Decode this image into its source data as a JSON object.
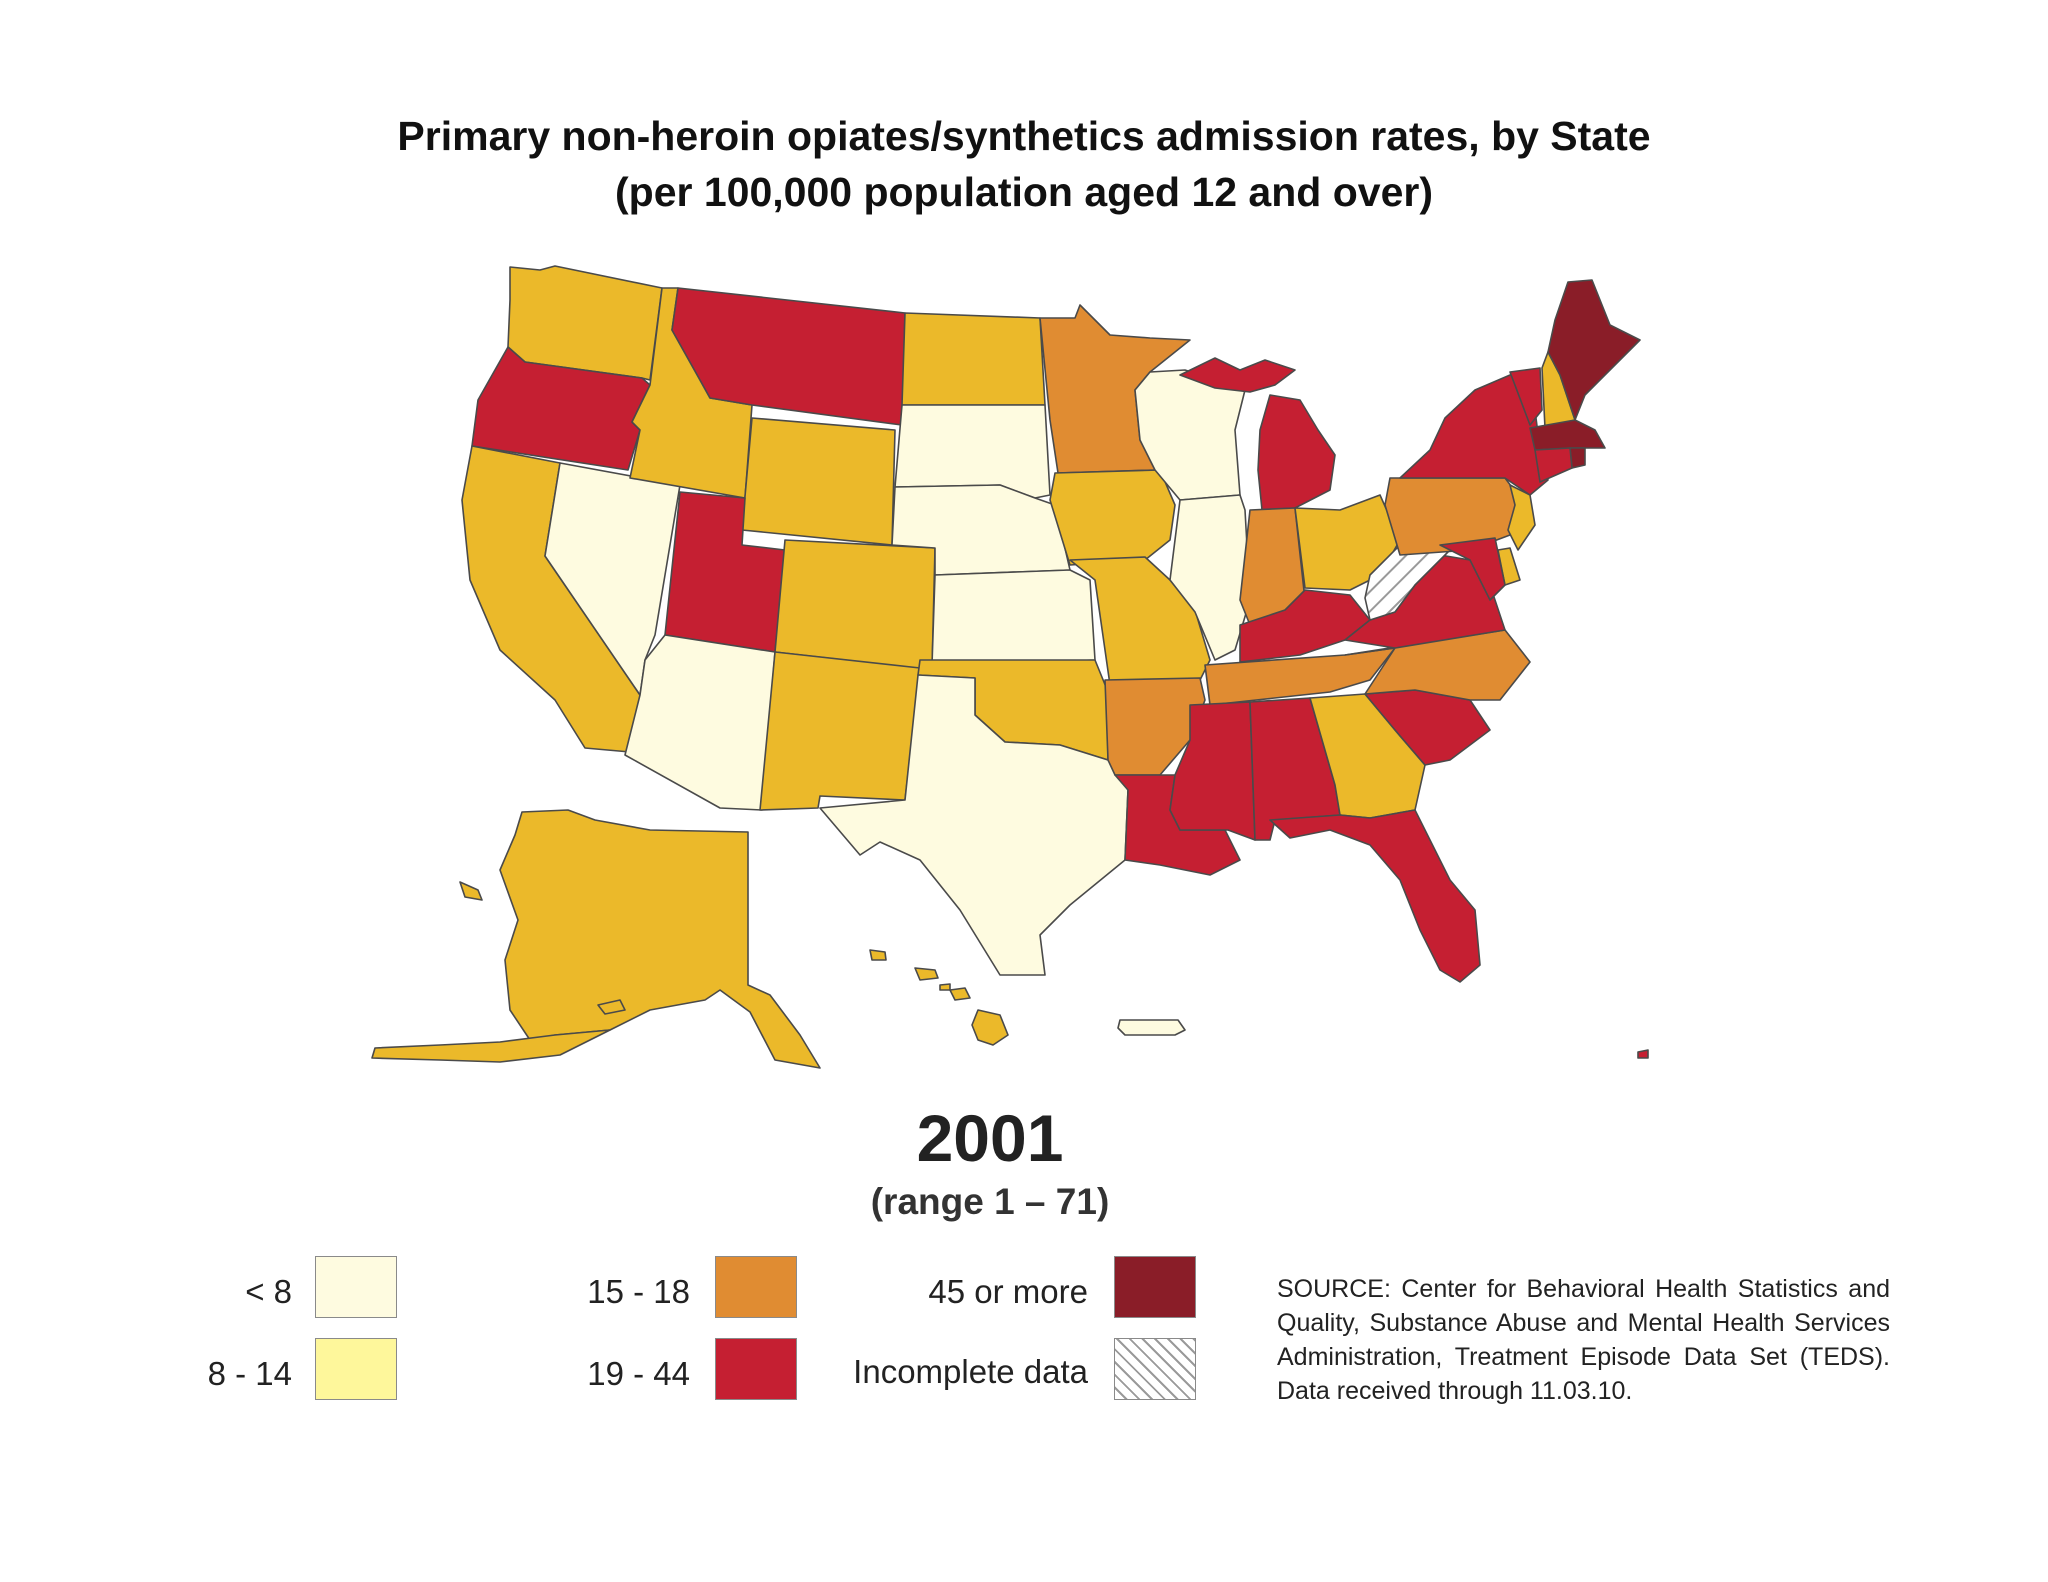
{
  "title": {
    "line1": "Primary non-heroin opiates/synthetics admission rates, by State",
    "line2": "(per 100,000 population aged 12 and over)"
  },
  "year": "2001",
  "range": "(range 1 – 71)",
  "legend": [
    {
      "label": "< 8",
      "color": "#fefbe0"
    },
    {
      "label": "8 - 14",
      "color": "#fef79b"
    },
    {
      "label": "15 - 18",
      "color": "#e08c32"
    },
    {
      "label": "19 - 44",
      "color": "#c51f32"
    },
    {
      "label": "45 or more",
      "color": "#8a1d28"
    },
    {
      "label": "Incomplete data",
      "color": "hatched"
    }
  ],
  "colors": {
    "bin_lt8": "#fefbe0",
    "bin_8_14": "#fef79b",
    "bin_gold": "#ebb92a",
    "bin_15_18": "#e08c32",
    "bin_19_44": "#c51f32",
    "bin_45plus": "#8a1d28"
  },
  "states": {
    "WA": "gold",
    "OR": "19-44",
    "CA": "gold",
    "NV": "lt8",
    "ID": "gold",
    "MT": "19-44",
    "WY": "gold",
    "UT": "19-44",
    "CO": "gold",
    "AZ": "lt8",
    "NM": "gold",
    "ND": "gold",
    "SD": "lt8",
    "NE": "lt8",
    "KS": "lt8",
    "OK": "gold",
    "TX": "lt8",
    "MN": "15-18",
    "IA": "gold",
    "MO": "gold",
    "AR": "15-18",
    "LA": "19-44",
    "WI": "lt8",
    "IL": "lt8",
    "MI": "19-44",
    "IN": "15-18",
    "OH": "gold",
    "KY": "19-44",
    "TN": "15-18",
    "MS": "19-44",
    "AL": "19-44",
    "GA": "gold",
    "FL": "19-44",
    "SC": "19-44",
    "NC": "15-18",
    "VA": "19-44",
    "WV": "incomplete",
    "PA": "15-18",
    "NY": "19-44",
    "VT": "19-44",
    "NH": "gold",
    "ME": "45+",
    "MA": "45+",
    "RI": "45+",
    "CT": "19-44",
    "NJ": "gold",
    "DE": "gold",
    "MD": "19-44",
    "AK": "gold",
    "HI": "gold",
    "PR": "lt8",
    "VI": "19-44"
  },
  "source": "SOURCE: Center for Behavioral Health Statistics and Quality, Substance Abuse and Mental Health Services Administration, Treatment Episode Data Set (TEDS). Data received through 11.03.10."
}
